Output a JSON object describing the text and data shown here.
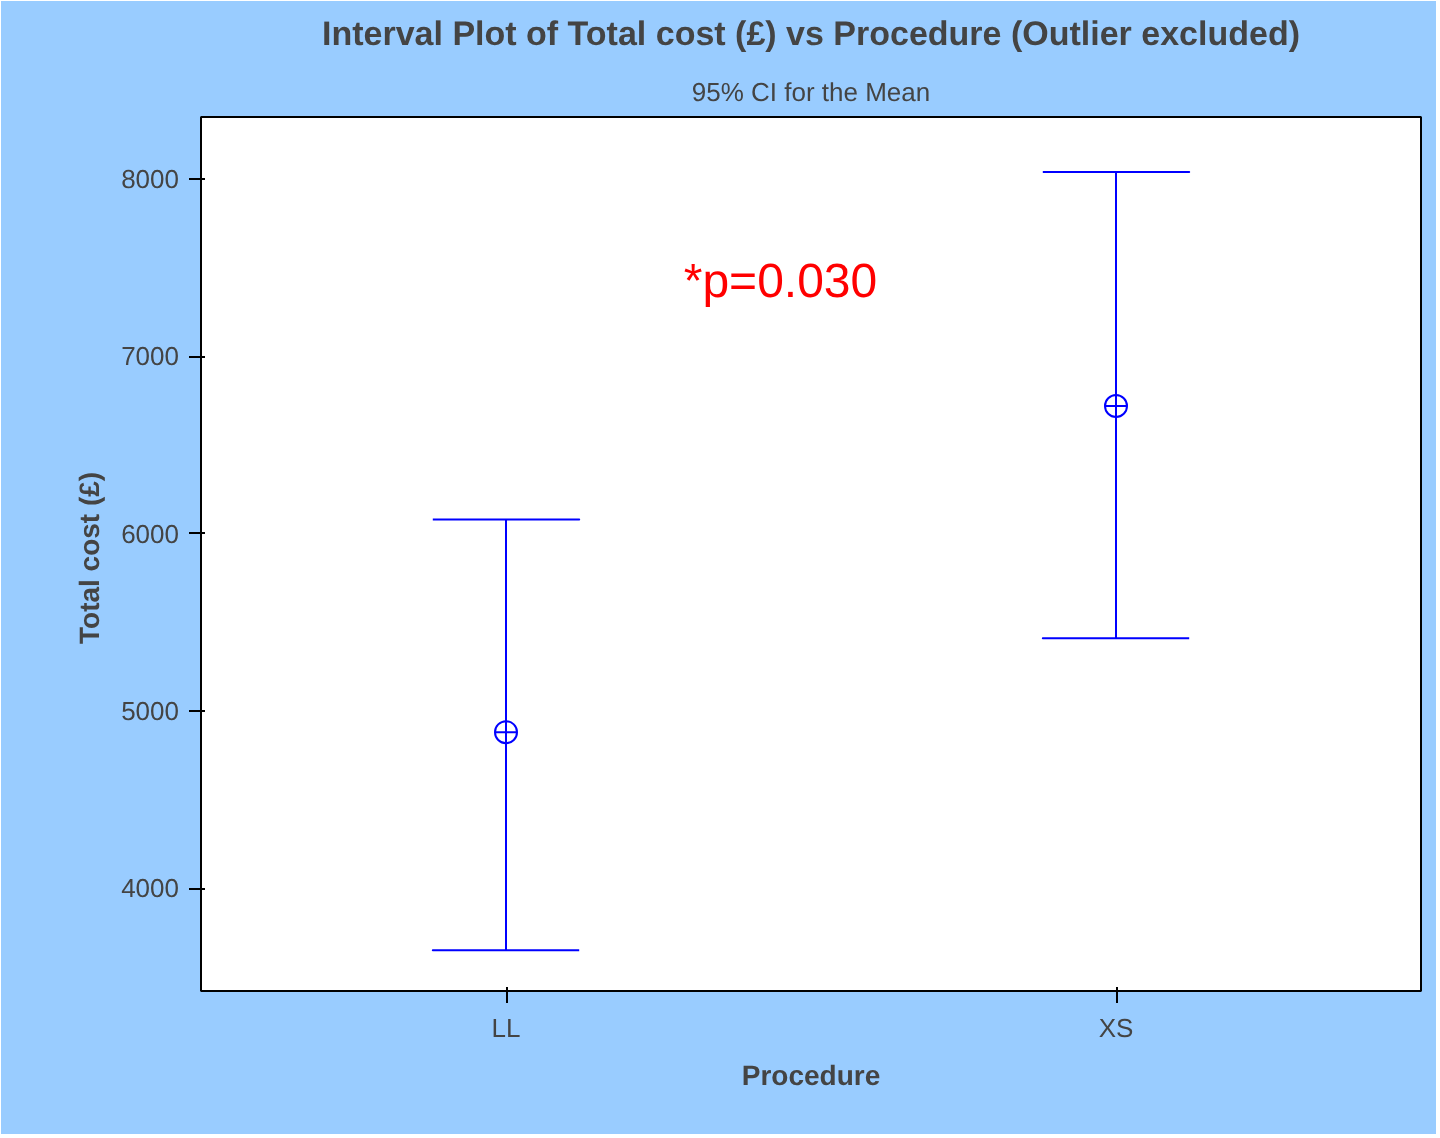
{
  "chart_data": {
    "type": "scatter",
    "title": "Interval Plot of Total cost (£) vs Procedure (Outlier excluded)",
    "subtitle": "95% CI for the Mean",
    "xlabel": "Procedure",
    "ylabel": "Total cost  (£)",
    "categories": [
      "LL",
      "XS"
    ],
    "values": [
      4880,
      6720
    ],
    "errors": [
      [
        3650,
        6080
      ],
      [
        5410,
        8040
      ]
    ],
    "color": "#0000ff",
    "marker": "circle",
    "ylim": [
      3420,
      8350
    ],
    "yticks": [
      4000,
      5000,
      6000,
      7000,
      8000
    ],
    "annotations": [
      "*p=0.030"
    ],
    "grid": false
  }
}
